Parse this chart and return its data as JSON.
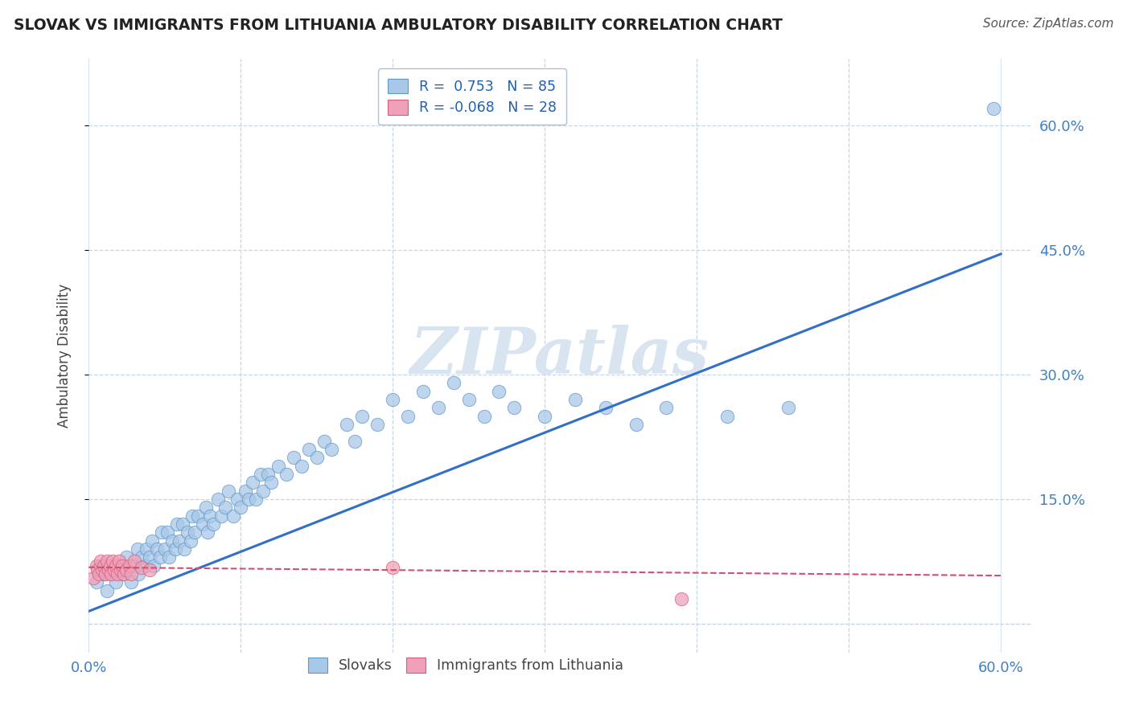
{
  "title": "SLOVAK VS IMMIGRANTS FROM LITHUANIA AMBULATORY DISABILITY CORRELATION CHART",
  "source": "Source: ZipAtlas.com",
  "ylabel": "Ambulatory Disability",
  "xlim": [
    0.0,
    0.62
  ],
  "ylim": [
    -0.035,
    0.68
  ],
  "ytick_vals": [
    0.15,
    0.3,
    0.45,
    0.6
  ],
  "ytick_labels": [
    "15.0%",
    "30.0%",
    "45.0%",
    "60.0%"
  ],
  "xtick_vals": [
    0.0,
    0.1,
    0.2,
    0.3,
    0.4,
    0.5,
    0.6
  ],
  "xtick_labels": [
    "0.0%",
    "",
    "",
    "",
    "",
    "",
    "60.0%"
  ],
  "blue_color": "#a8c8e8",
  "blue_edge_color": "#6098c8",
  "pink_color": "#f0a0b8",
  "pink_edge_color": "#d06080",
  "blue_line_color": "#3070c8",
  "pink_line_color": "#d05070",
  "background_color": "#ffffff",
  "grid_color": "#c8d4e8",
  "title_color": "#222222",
  "axis_tick_color": "#4080c0",
  "watermark": "ZIPatlas",
  "watermark_color": "#d8e4f0",
  "legend_R1": "R =  0.753",
  "legend_N1": "N = 85",
  "legend_R2": "R = -0.068",
  "legend_N2": "N = 28",
  "blue_trend": [
    0.0,
    0.015,
    0.6,
    0.445
  ],
  "pink_trend": [
    0.0,
    0.068,
    0.6,
    0.058
  ],
  "slovaks_x": [
    0.005,
    0.008,
    0.01,
    0.012,
    0.015,
    0.018,
    0.02,
    0.022,
    0.025,
    0.028,
    0.03,
    0.032,
    0.033,
    0.035,
    0.037,
    0.038,
    0.04,
    0.042,
    0.043,
    0.045,
    0.047,
    0.048,
    0.05,
    0.052,
    0.053,
    0.055,
    0.057,
    0.058,
    0.06,
    0.062,
    0.063,
    0.065,
    0.067,
    0.068,
    0.07,
    0.072,
    0.075,
    0.077,
    0.078,
    0.08,
    0.082,
    0.085,
    0.087,
    0.09,
    0.092,
    0.095,
    0.098,
    0.1,
    0.103,
    0.105,
    0.108,
    0.11,
    0.113,
    0.115,
    0.118,
    0.12,
    0.125,
    0.13,
    0.135,
    0.14,
    0.145,
    0.15,
    0.155,
    0.16,
    0.17,
    0.175,
    0.18,
    0.19,
    0.2,
    0.21,
    0.22,
    0.23,
    0.24,
    0.25,
    0.26,
    0.27,
    0.28,
    0.3,
    0.32,
    0.34,
    0.36,
    0.38,
    0.42,
    0.46,
    0.595
  ],
  "slovaks_y": [
    0.05,
    0.07,
    0.06,
    0.04,
    0.06,
    0.05,
    0.07,
    0.06,
    0.08,
    0.05,
    0.07,
    0.09,
    0.06,
    0.08,
    0.07,
    0.09,
    0.08,
    0.1,
    0.07,
    0.09,
    0.08,
    0.11,
    0.09,
    0.11,
    0.08,
    0.1,
    0.09,
    0.12,
    0.1,
    0.12,
    0.09,
    0.11,
    0.1,
    0.13,
    0.11,
    0.13,
    0.12,
    0.14,
    0.11,
    0.13,
    0.12,
    0.15,
    0.13,
    0.14,
    0.16,
    0.13,
    0.15,
    0.14,
    0.16,
    0.15,
    0.17,
    0.15,
    0.18,
    0.16,
    0.18,
    0.17,
    0.19,
    0.18,
    0.2,
    0.19,
    0.21,
    0.2,
    0.22,
    0.21,
    0.24,
    0.22,
    0.25,
    0.24,
    0.27,
    0.25,
    0.28,
    0.26,
    0.29,
    0.27,
    0.25,
    0.28,
    0.26,
    0.25,
    0.27,
    0.26,
    0.24,
    0.26,
    0.25,
    0.26,
    0.62
  ],
  "lithuania_x": [
    0.003,
    0.005,
    0.006,
    0.007,
    0.008,
    0.009,
    0.01,
    0.011,
    0.012,
    0.013,
    0.014,
    0.015,
    0.016,
    0.017,
    0.018,
    0.019,
    0.02,
    0.021,
    0.022,
    0.023,
    0.025,
    0.027,
    0.028,
    0.03,
    0.035,
    0.04,
    0.2,
    0.39
  ],
  "lithuania_y": [
    0.055,
    0.07,
    0.065,
    0.06,
    0.075,
    0.065,
    0.07,
    0.06,
    0.075,
    0.065,
    0.07,
    0.06,
    0.075,
    0.065,
    0.07,
    0.06,
    0.075,
    0.065,
    0.07,
    0.06,
    0.065,
    0.07,
    0.06,
    0.075,
    0.068,
    0.065,
    0.068,
    0.03
  ]
}
